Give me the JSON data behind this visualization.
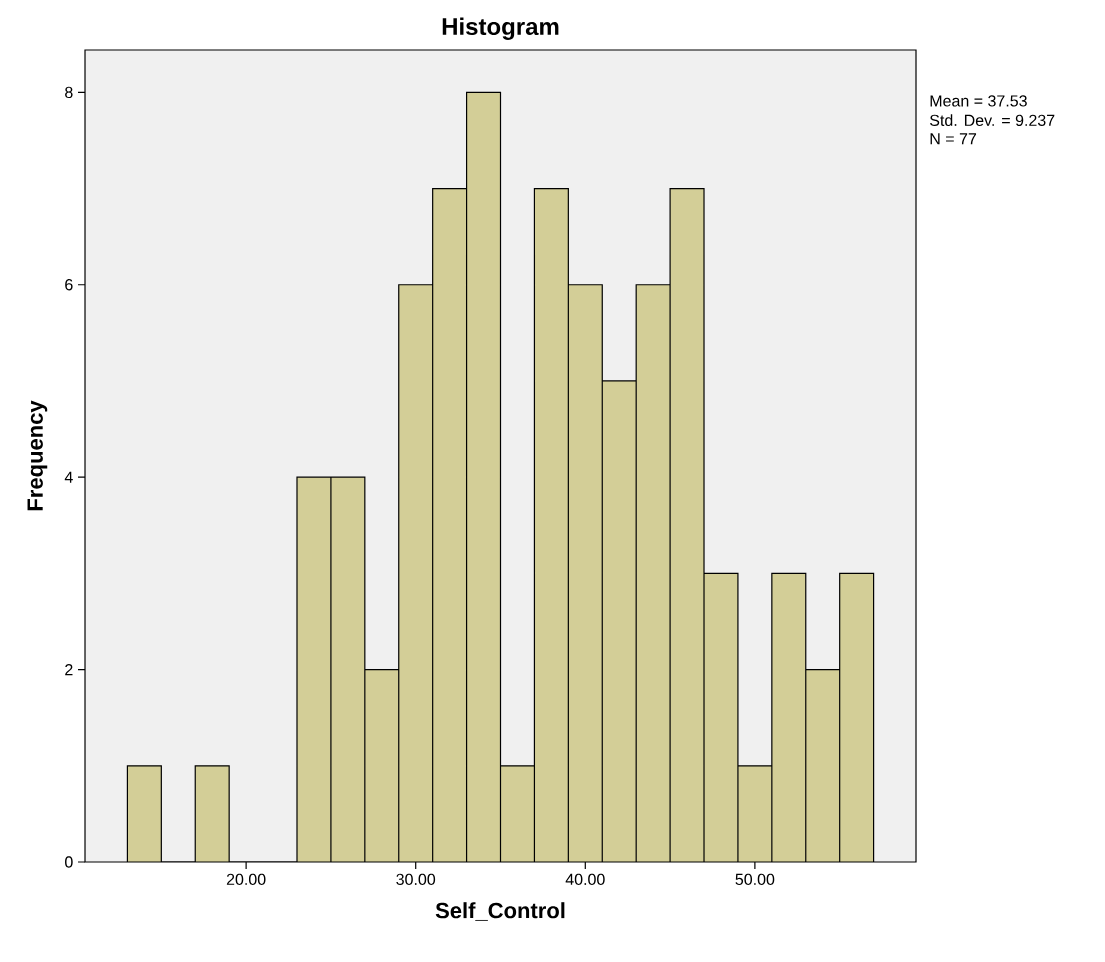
{
  "chart_data": {
    "type": "histogram",
    "title": "Histogram",
    "xlabel": "Self_Control",
    "ylabel": "Frequency",
    "bins": [
      13,
      15,
      17,
      19,
      21,
      23,
      25,
      27,
      29,
      31,
      33,
      35,
      37,
      39,
      41,
      43,
      45,
      47,
      49,
      51,
      53,
      55,
      57
    ],
    "values": [
      1,
      0,
      1,
      0,
      0,
      4,
      4,
      2,
      6,
      7,
      8,
      1,
      7,
      6,
      5,
      6,
      7,
      3,
      1,
      3,
      2,
      3
    ],
    "color": "#d3ce97",
    "xlim": [
      10.5,
      59.5
    ],
    "ylim": [
      0,
      8.44
    ],
    "xticks": [
      {
        "value": 20,
        "label": "20.00"
      },
      {
        "value": 30,
        "label": "30.00"
      },
      {
        "value": 40,
        "label": "40.00"
      },
      {
        "value": 50,
        "label": "50.00"
      }
    ],
    "yticks": [
      0,
      2,
      4,
      6,
      8
    ],
    "annotations": [
      "Mean = 37.53",
      "Std. Dev. = 9.237",
      "N = 77"
    ]
  }
}
